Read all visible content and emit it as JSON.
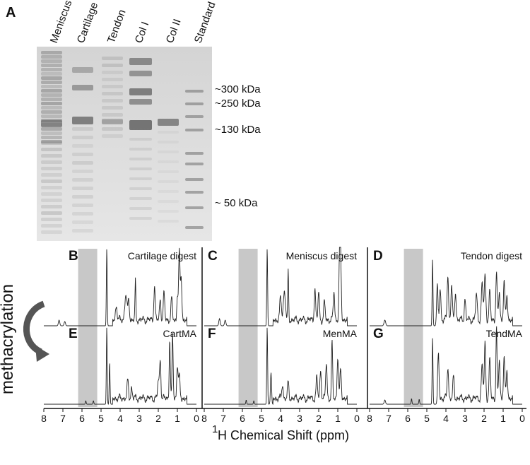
{
  "panel_a": {
    "label": "A",
    "lanes": [
      "Meniscus",
      "Cartilage",
      "Tendon",
      "Col I",
      "Col II",
      "Standard"
    ],
    "markers": [
      "~300 kDa",
      "~250 kDa",
      "~130 kDa",
      "~ 50 kDa"
    ]
  },
  "side_label": "methacrylation",
  "nmr_panels": [
    {
      "label": "B",
      "title": "Cartilage digest"
    },
    {
      "label": "C",
      "title": "Meniscus digest"
    },
    {
      "label": "D",
      "title": "Tendon digest"
    },
    {
      "label": "E",
      "title": "CartMA"
    },
    {
      "label": "F",
      "title": "MenMA"
    },
    {
      "label": "G",
      "title": "TendMA"
    }
  ],
  "x_axis": {
    "ticks": [
      "8",
      "7",
      "6",
      "5",
      "4",
      "3",
      "2",
      "1",
      "0"
    ],
    "label_sup": "1",
    "label": "H Chemical Shift (ppm)"
  },
  "colors": {
    "shade": "#c8c8c8",
    "gel_bg": "#dcdcdc",
    "band": "#8f8f8f"
  }
}
